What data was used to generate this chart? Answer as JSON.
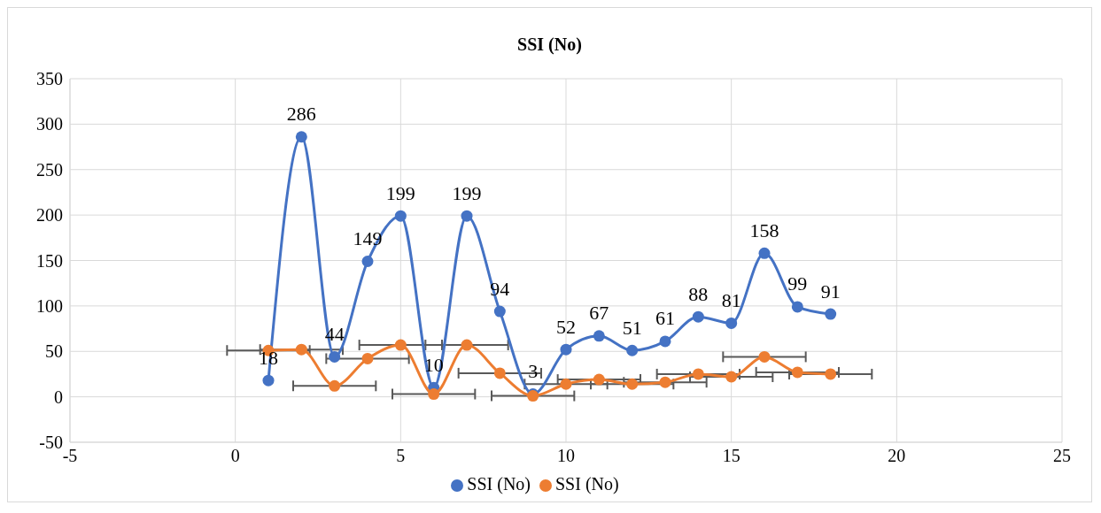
{
  "chart_data": {
    "type": "line",
    "title": "SSI (No)",
    "x": [
      1,
      2,
      3,
      4,
      5,
      6,
      7,
      8,
      9,
      10,
      11,
      12,
      13,
      14,
      15,
      16,
      17,
      18
    ],
    "series": [
      {
        "name": "SSI (No)",
        "color": "#4472c4",
        "values": [
          18,
          286,
          44,
          149,
          199,
          10,
          199,
          94,
          3,
          52,
          67,
          51,
          61,
          88,
          81,
          158,
          99,
          91
        ],
        "value_labels": [
          "18",
          "286",
          "44",
          "149",
          "199",
          "10",
          "199",
          "94",
          "3",
          "52",
          "67",
          "51",
          "61",
          "88",
          "81",
          "158",
          "99",
          "91"
        ]
      },
      {
        "name": "SSI (No)",
        "color": "#ed7d31",
        "values": [
          51,
          52,
          12,
          42,
          57,
          3,
          57,
          26,
          1,
          14,
          19,
          14,
          16,
          25,
          22,
          44,
          27,
          25
        ],
        "xerrors": [
          1.25,
          1.25,
          1.25,
          1.25,
          1.25,
          1.25,
          1.25,
          1.25,
          1.25,
          1.25,
          1.25,
          1.25,
          1.25,
          1.25,
          1.25,
          1.25,
          1.25,
          1.25
        ]
      }
    ],
    "xlim": [
      -5,
      25
    ],
    "xticks": [
      -5,
      0,
      5,
      10,
      15,
      20,
      25
    ],
    "ylim": [
      -50,
      350
    ],
    "yticks": [
      -50,
      0,
      50,
      100,
      150,
      200,
      250,
      300,
      350
    ],
    "grid": true,
    "legend": "bottom",
    "marker": "circle",
    "line_style": "solid"
  }
}
